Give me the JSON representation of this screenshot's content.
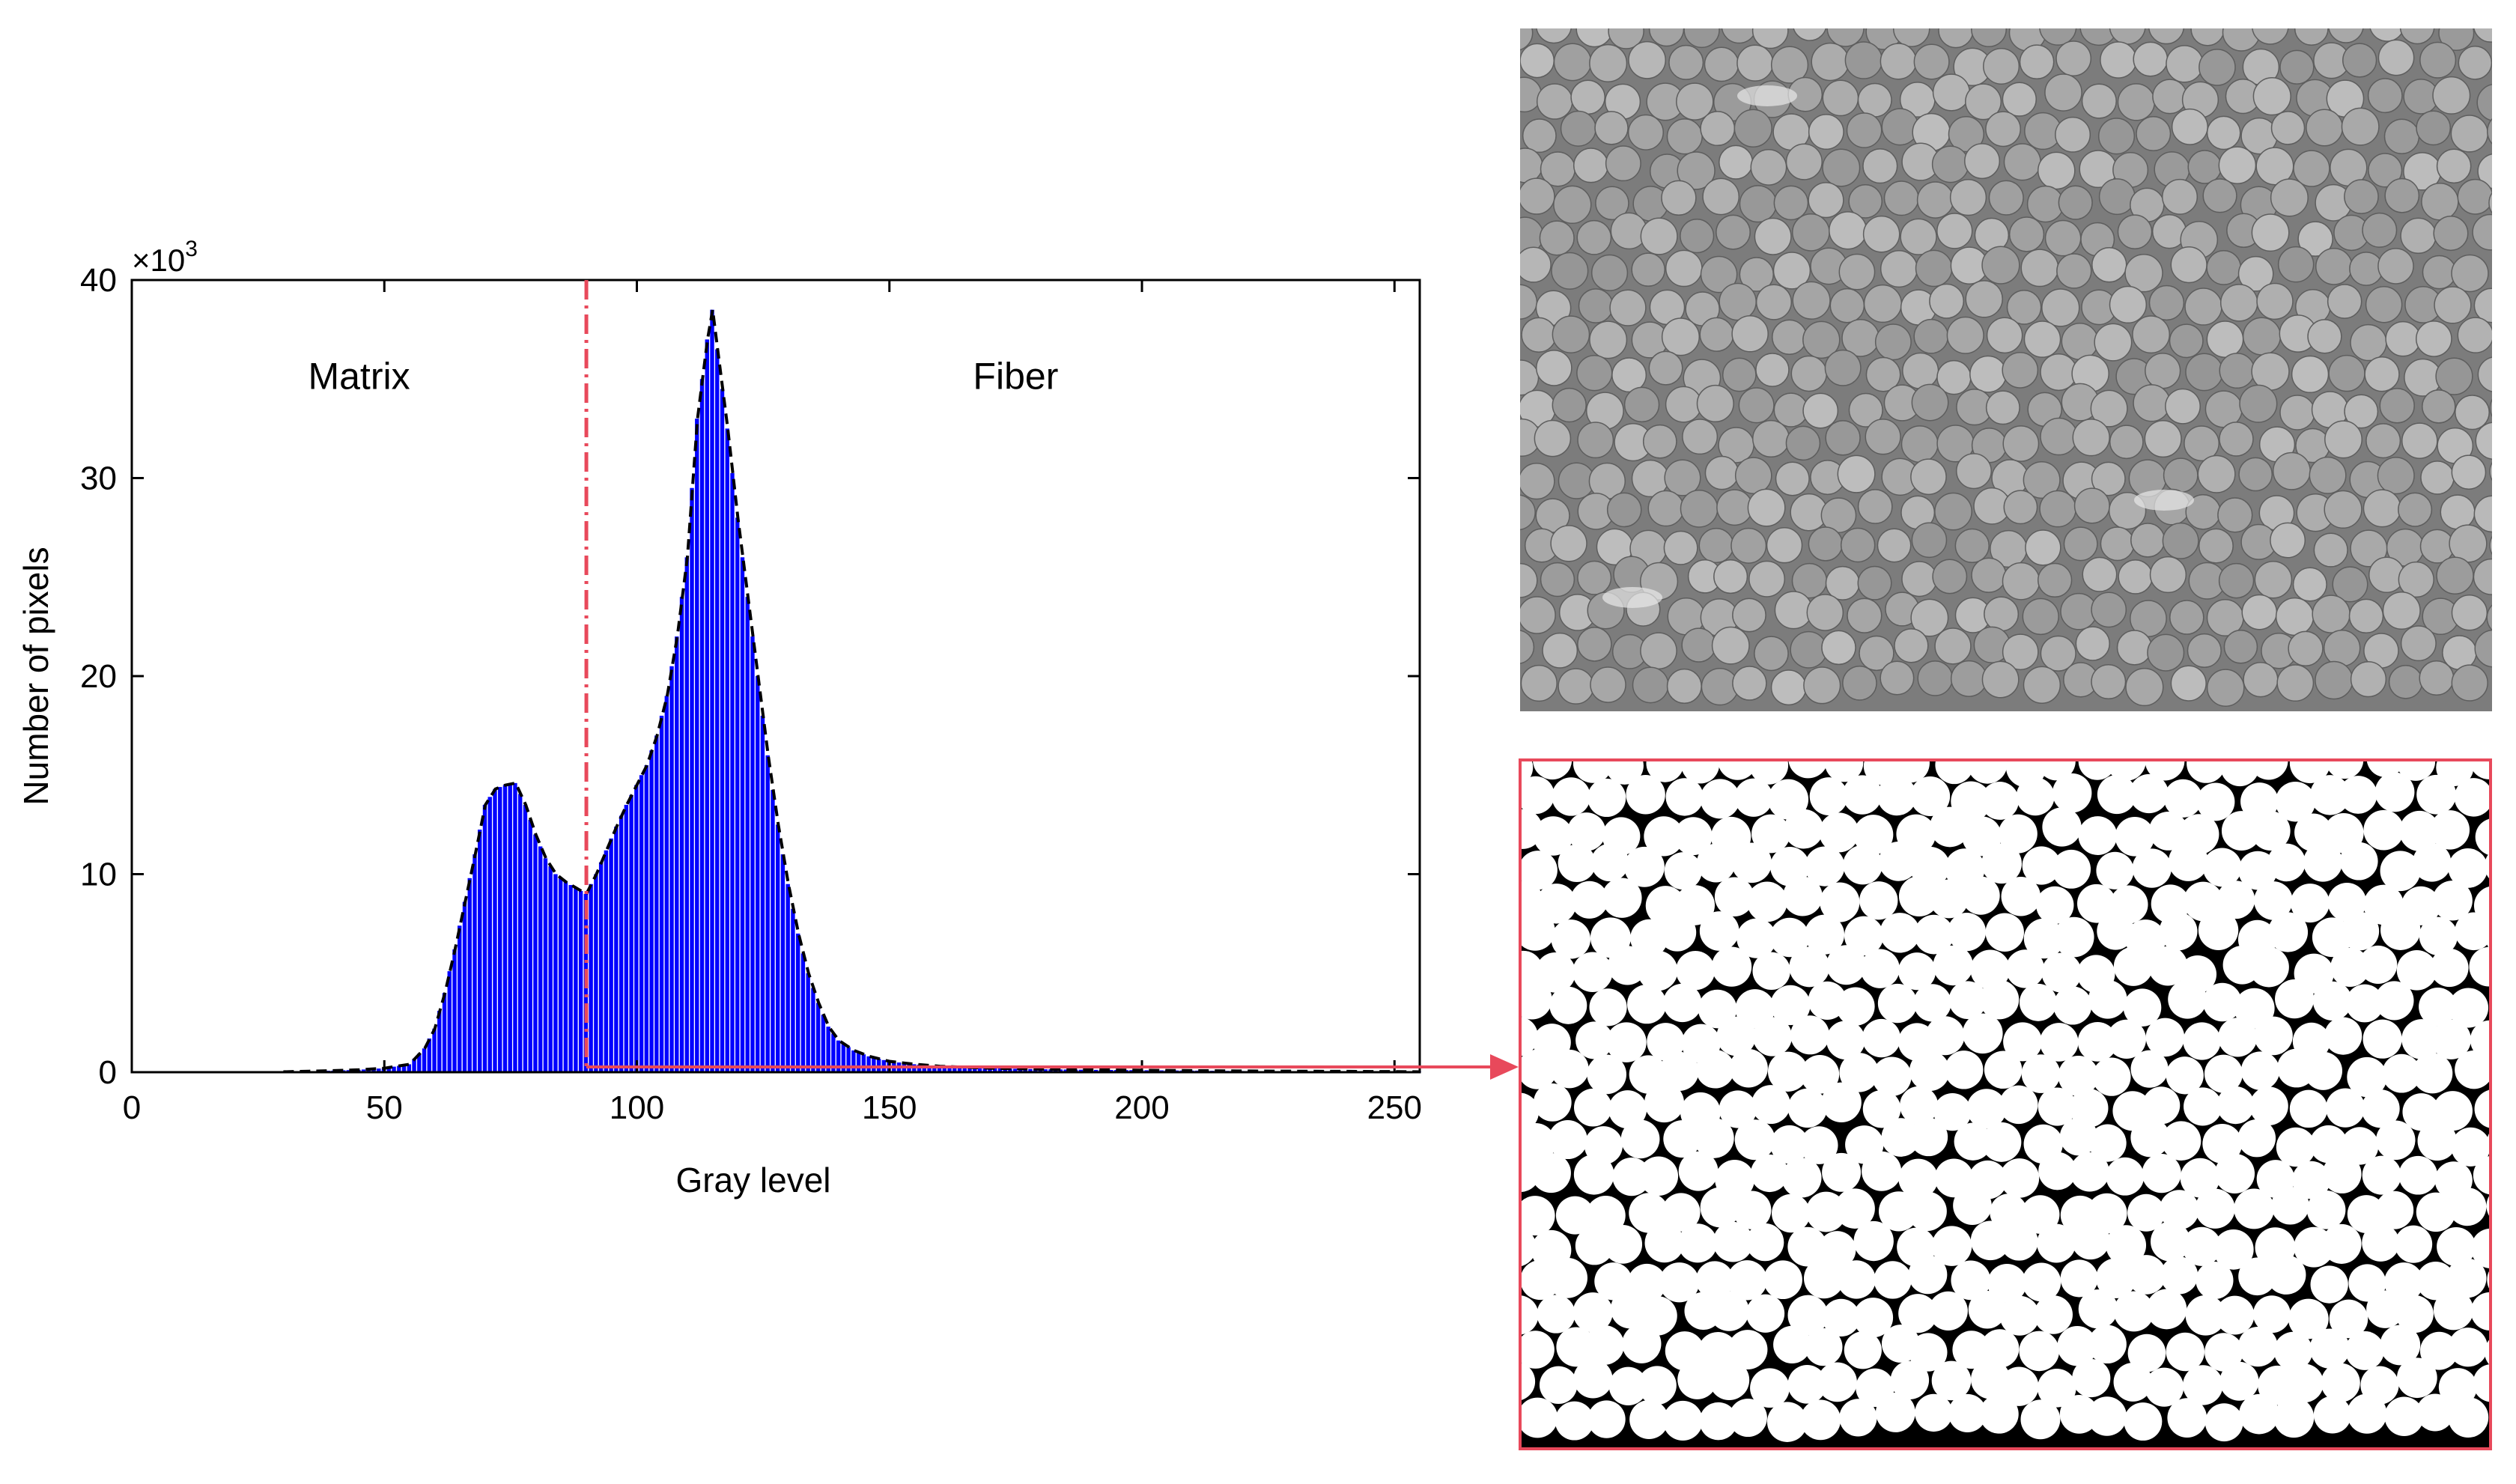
{
  "chart_data": {
    "type": "bar",
    "xlabel": "Gray level",
    "ylabel": "Number of pixels",
    "y_multiplier": {
      "base": "×10",
      "exponent": "3"
    },
    "xlim": [
      0,
      255
    ],
    "ylim": [
      0,
      40
    ],
    "xticks": [
      0,
      50,
      100,
      150,
      200,
      250
    ],
    "yticks": [
      0,
      10,
      20,
      30,
      40
    ],
    "threshold": 90,
    "regions": [
      {
        "label": "Matrix",
        "x": 45,
        "y": 34.5
      },
      {
        "label": "Fiber",
        "x": 175,
        "y": 34.5
      }
    ],
    "grid": false,
    "legend": "none",
    "bar_color": "#0000ff",
    "envelope_color": "#000000",
    "threshold_color": "#e8495b",
    "series": [
      {
        "x": [
          30,
          35,
          40,
          45,
          50,
          55,
          58,
          60,
          62,
          64,
          66,
          68,
          70,
          72,
          74,
          76,
          78,
          80,
          82,
          84,
          86,
          88,
          90,
          92,
          94,
          96,
          98,
          100,
          102,
          104,
          106,
          108,
          110,
          112,
          113,
          114,
          115,
          116,
          118,
          120,
          122,
          124,
          126,
          128,
          130,
          132,
          134,
          136,
          138,
          140,
          143,
          146,
          150,
          155,
          160,
          165,
          170,
          180,
          190,
          200,
          210,
          220,
          230,
          240,
          250,
          255
        ],
        "values": [
          0.02,
          0.05,
          0.08,
          0.12,
          0.2,
          0.4,
          1.2,
          2.2,
          4.0,
          6.2,
          8.6,
          11.0,
          13.5,
          14.3,
          14.5,
          14.6,
          13.5,
          12.0,
          10.8,
          10.0,
          9.6,
          9.3,
          9.0,
          10.0,
          11.2,
          12.4,
          13.5,
          14.5,
          15.5,
          17.0,
          19.0,
          22.0,
          26.0,
          33.0,
          35.0,
          37.0,
          38.5,
          36.5,
          32.5,
          28.0,
          24.0,
          20.0,
          16.0,
          12.5,
          9.5,
          7.0,
          5.0,
          3.5,
          2.3,
          1.6,
          1.1,
          0.8,
          0.55,
          0.4,
          0.3,
          0.25,
          0.2,
          0.15,
          0.12,
          0.1,
          0.08,
          0.06,
          0.05,
          0.04,
          0.03,
          0.02
        ]
      }
    ]
  },
  "images": {
    "sem": {
      "name": "sem-micrograph"
    },
    "segmented": {
      "name": "binary-segmented-image"
    }
  },
  "colors": {
    "axes": "#000000",
    "arrow": "#e8495b",
    "sem_bg": "#7c7c7c",
    "seg_bg": "#000000"
  }
}
